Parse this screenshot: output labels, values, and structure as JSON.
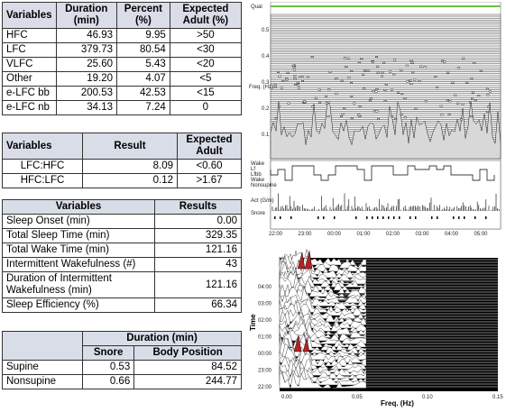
{
  "freq_table": {
    "headers": [
      "Variables",
      "Duration (min)",
      "Percent (%)",
      "Expected Adult (%)"
    ],
    "rows": [
      [
        "HFC",
        "46.93",
        "9.95",
        ">50"
      ],
      [
        "LFC",
        "379.73",
        "80.54",
        "<30"
      ],
      [
        "VLFC",
        "25.60",
        "5.43",
        "<20"
      ],
      [
        "Other",
        "19.20",
        "4.07",
        "<5"
      ],
      [
        "e-LFC bb",
        "200.53",
        "42.53",
        "<15"
      ],
      [
        "e-LFC nb",
        "34.13",
        "7.24",
        "0"
      ]
    ]
  },
  "ratio_table": {
    "headers": [
      "Variables",
      "Result",
      "Expected Adult"
    ],
    "rows": [
      [
        "LFC:HFC",
        "8.09",
        "<0.60"
      ],
      [
        "HFC:LFC",
        "0.12",
        ">1.67"
      ]
    ]
  },
  "sleep_table": {
    "headers": [
      "Variables",
      "Results"
    ],
    "rows": [
      [
        "Sleep Onset (min)",
        "0.00"
      ],
      [
        "Total Sleep Time (min)",
        "329.35"
      ],
      [
        "Total Wake Time (min)",
        "121.16"
      ],
      [
        "Intermittent Wakefulness (#)",
        "43"
      ],
      [
        "Duration of Intermittent Wakefulness (min)",
        "121.16"
      ],
      [
        "Sleep Efficiency (%)",
        "66.34"
      ]
    ]
  },
  "position_table": {
    "group_header": "Duration (min)",
    "sub_headers": [
      "Snore",
      "Body Position"
    ],
    "rows": [
      [
        "Supine",
        "0.53",
        "84.52"
      ],
      [
        "Nonsupine",
        "0.66",
        "244.77"
      ]
    ]
  },
  "spectrogram": {
    "qual_label": "Qual",
    "y_label": "Freq. (Hz)",
    "y_ticks": [
      "0.5",
      "0.4",
      "0.3",
      "0.2",
      "0.1"
    ],
    "stage_labels": [
      "Wake",
      "Lf",
      "Lfbb",
      "Wake",
      "Nonsupine"
    ],
    "act_label": "Act (G/m)",
    "snore_label": "Snore",
    "time_ticks": [
      "22:00",
      "23:00",
      "00:00",
      "01:00",
      "02:00",
      "03:00",
      "04:00",
      "05:00"
    ]
  },
  "waterfall": {
    "y_label": "Time",
    "x_label": "Freq. (Hz)",
    "y_ticks": [
      "04:00",
      "03:00",
      "02:00",
      "01:00",
      "00:00",
      "23:00",
      "22:00"
    ],
    "x_ticks": [
      "0.00",
      "0.05",
      "0.10",
      "0.15"
    ]
  }
}
